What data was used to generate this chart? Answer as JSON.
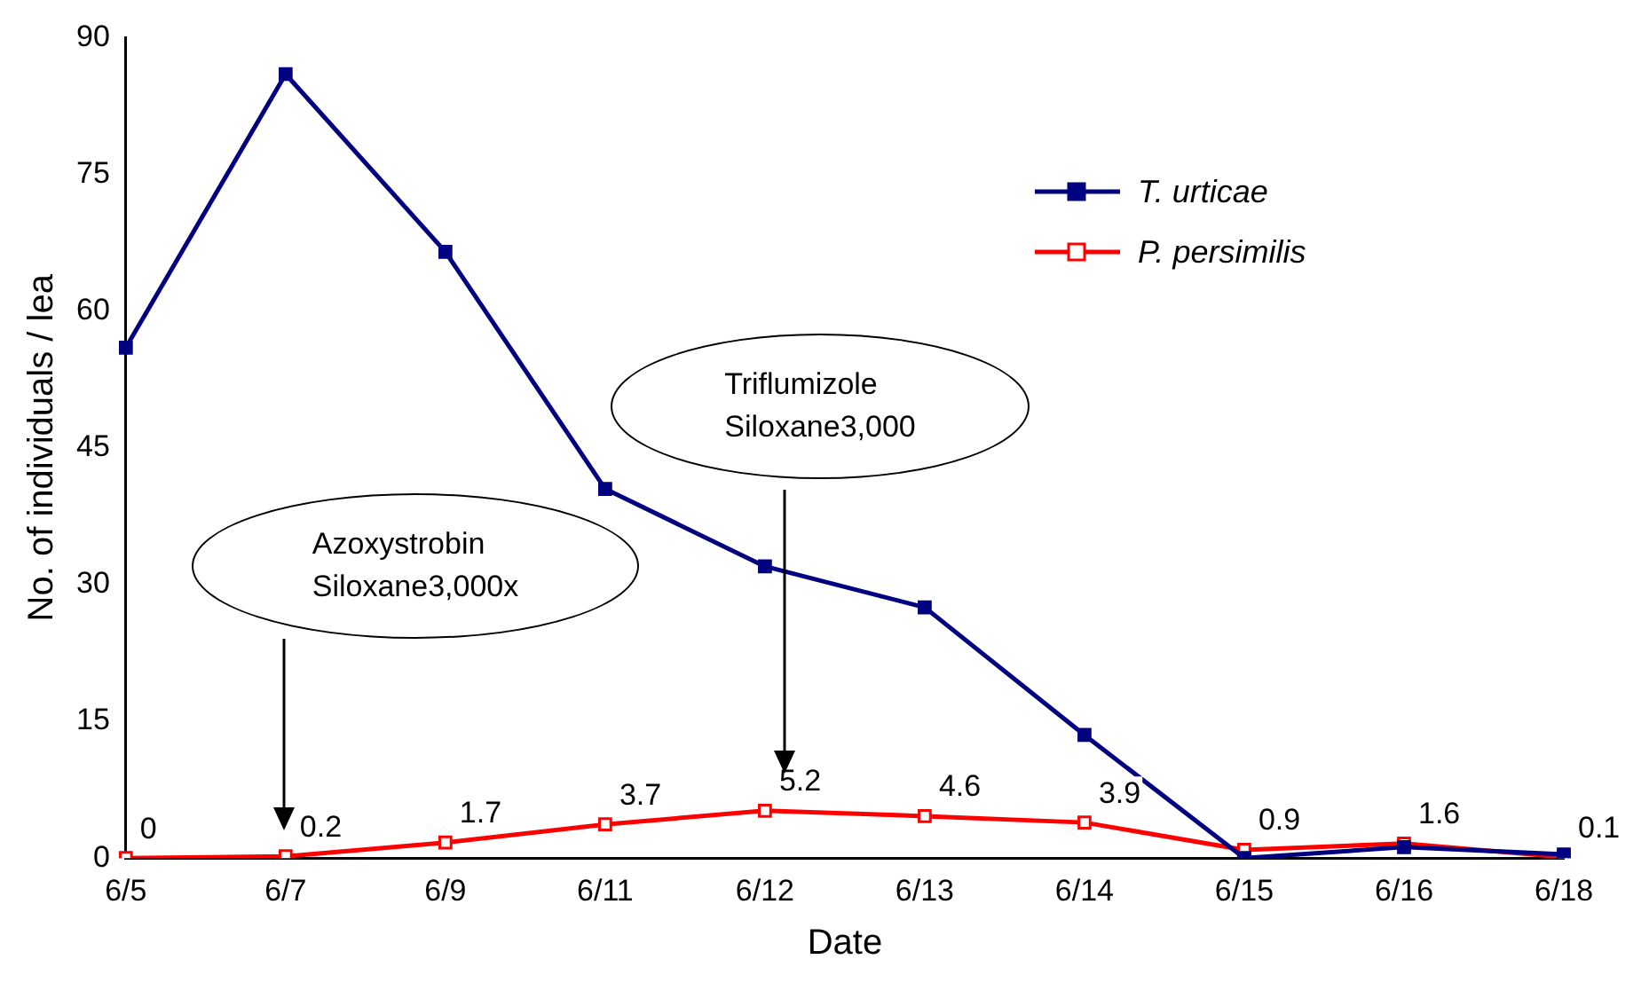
{
  "chart_data": {
    "type": "line",
    "xlabel": "Date",
    "ylabel": "No. of individuals / lea",
    "categories": [
      "6/5",
      "6/7",
      "6/9",
      "6/11",
      "6/12",
      "6/13",
      "6/14",
      "6/15",
      "6/16",
      "6/18"
    ],
    "series": [
      {
        "name": "T. urticae",
        "color": "#000080",
        "marker": "square",
        "values": [
          56,
          86,
          66.5,
          40.5,
          32,
          27.5,
          13.5,
          0,
          1.2,
          0.4
        ]
      },
      {
        "name": "P. persimilis",
        "color": "#ff0000",
        "marker": "square",
        "values": [
          0,
          0.2,
          1.7,
          3.7,
          5.2,
          4.6,
          3.9,
          0.9,
          1.6,
          0.1
        ],
        "value_labels": [
          "0",
          "0.2",
          "1.7",
          "3.7",
          "5.2",
          "4.6",
          "3.9",
          "0.9",
          "1.6",
          "0.1"
        ]
      }
    ],
    "ylim": [
      0,
      90
    ],
    "yticks": [
      0,
      15,
      30,
      45,
      60,
      75,
      90
    ],
    "grid": false,
    "legend": "top right",
    "annotations": [
      "Azoxystrobin\nSiloxane3,000x",
      "Triflumizole\nSiloxane3,000"
    ]
  }
}
